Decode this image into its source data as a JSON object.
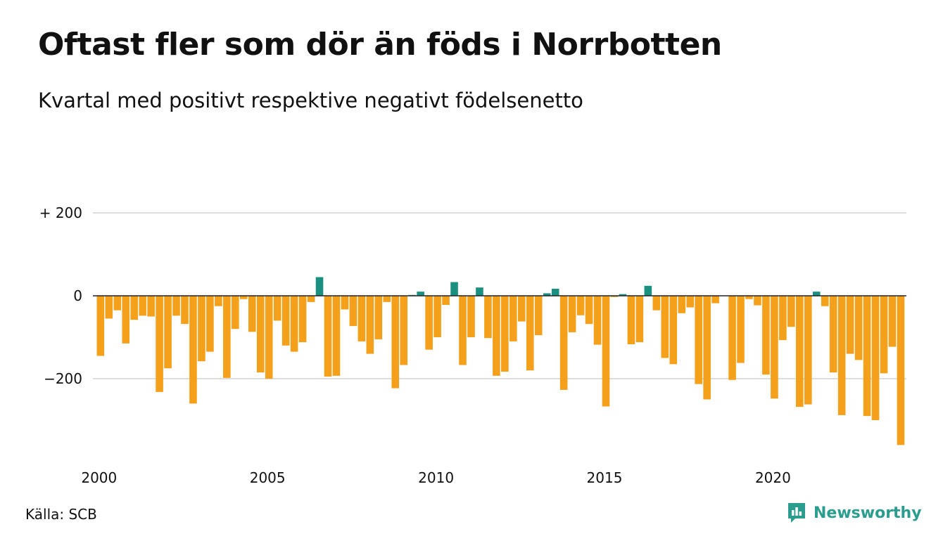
{
  "title": "Oftast fler som dör än föds i Norrbotten",
  "subtitle": "Kvartal med positivt respektive negativt födelsenetto",
  "source": "Källa: SCB",
  "brand": "Newsworthy",
  "colors": {
    "positive": "#1a9080",
    "negative": "#f5a01a",
    "grid": "#dddddd",
    "zero": "#222222"
  },
  "chart_data": {
    "type": "bar",
    "x_unit": "quarter",
    "start": "2000 Q1",
    "ylim": [
      -370,
      200
    ],
    "yticks": [
      {
        "value": 200,
        "label": "+ 200"
      },
      {
        "value": 0,
        "label": "0"
      },
      {
        "value": -200,
        "label": "−200"
      }
    ],
    "xticks": [
      {
        "label": "2000",
        "index": 0
      },
      {
        "label": "2005",
        "index": 20
      },
      {
        "label": "2010",
        "index": 40
      },
      {
        "label": "2015",
        "index": 60
      },
      {
        "label": "2020",
        "index": 80
      }
    ],
    "values": [
      -145,
      -55,
      -35,
      -115,
      -58,
      -48,
      -50,
      -232,
      -175,
      -48,
      -68,
      -260,
      -158,
      -135,
      -25,
      -198,
      -80,
      -8,
      -87,
      -185,
      -200,
      -60,
      -120,
      -135,
      -112,
      -15,
      45,
      -195,
      -193,
      -33,
      -73,
      -110,
      -140,
      -105,
      -15,
      -223,
      -167,
      2,
      10,
      -130,
      -100,
      -22,
      33,
      -167,
      -100,
      20,
      -102,
      -193,
      -183,
      -110,
      -62,
      -180,
      -95,
      6,
      17,
      -227,
      -88,
      -47,
      -68,
      -118,
      -267,
      -3,
      4,
      -117,
      -112,
      24,
      -35,
      -150,
      -165,
      -42,
      -28,
      -213,
      -250,
      -18,
      0,
      -203,
      -162,
      -8,
      -23,
      -190,
      -248,
      -107,
      -75,
      -268,
      -262,
      10,
      -25,
      -185,
      -288,
      -140,
      -155,
      -290,
      -300,
      -187,
      -123,
      -360
    ]
  }
}
